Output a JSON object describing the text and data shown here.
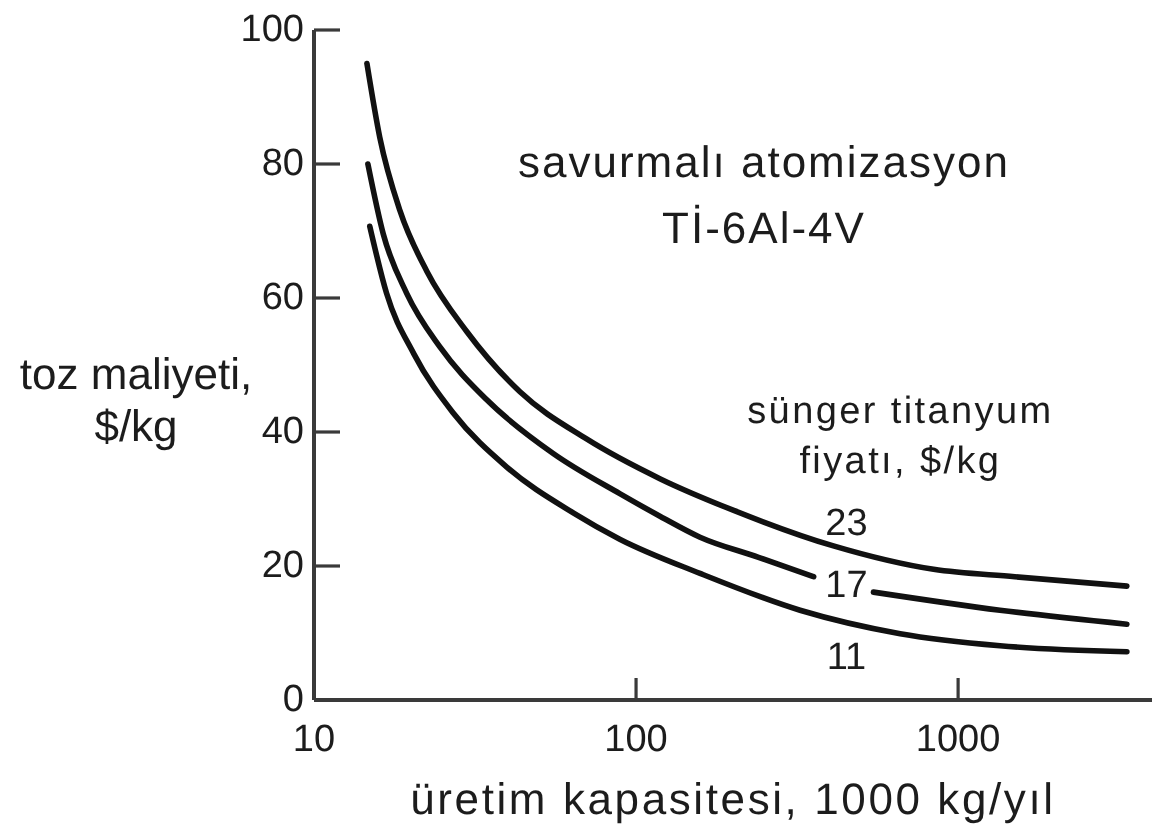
{
  "chart_data": {
    "type": "line",
    "title": "savurmalı atomizasyon\nTİ-6Al-4V",
    "xlabel": "üretim kapasitesi, 1000 kg/yıl",
    "ylabel": "toz maliyeti,\n$/kg",
    "legend_title": "sünger titanyum\nfiyatı, $/kg",
    "series": [
      {
        "name": "23",
        "color": "#111111",
        "x": [
          14.6,
          16,
          18.5,
          22.4,
          29.8,
          43.6,
          70,
          119,
          201,
          410,
          839,
          1500,
          3342
        ],
        "values": [
          95,
          84,
          73,
          64,
          55,
          46,
          39,
          33,
          28.3,
          23,
          19.5,
          18.4,
          17
        ]
      },
      {
        "name": "17",
        "color": "#111111",
        "x": [
          14.7,
          16.4,
          19.4,
          24.6,
          34.4,
          55.3,
          89,
          119,
          158,
          240,
          356,
          450,
          546,
          1349,
          3342
        ],
        "values": [
          80,
          69.6,
          60.7,
          52.7,
          44.8,
          36.8,
          30.8,
          27.4,
          24.3,
          21.3,
          18.4,
          null,
          16.1,
          13.4,
          11.3
        ]
      },
      {
        "name": "11",
        "color": "#111111",
        "x": [
          14.9,
          16.8,
          20.4,
          27.1,
          39.6,
          64,
          89,
          158,
          323,
          661,
          1349,
          3342
        ],
        "values": [
          70.7,
          60.7,
          51.7,
          42.8,
          34.8,
          27.9,
          24,
          18.9,
          13.4,
          9.9,
          8.1,
          7.2
        ]
      }
    ],
    "xlim": [
      10,
      4000
    ],
    "xticks": [
      10,
      100,
      1000
    ],
    "ylim": [
      0,
      100
    ],
    "yticks": [
      0,
      20,
      40,
      60,
      80,
      100
    ],
    "log": "x",
    "grid": false,
    "marker": "none",
    "line_style": "solid"
  }
}
